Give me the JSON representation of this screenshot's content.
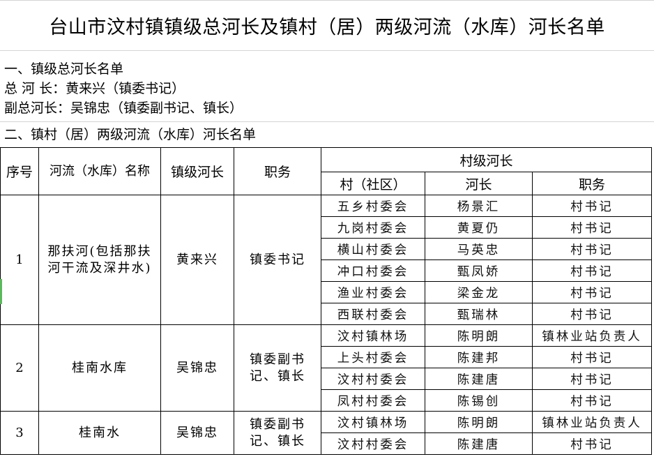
{
  "title": "台山市汶村镇镇级总河长及镇村（居）两级河流（水库）河长名单",
  "section1": {
    "heading": "一、镇级总河长名单",
    "chief": "总 河 长：黄来兴（镇委书记）",
    "deputy": "副总河长：吴锦忠（镇委副书记、镇长）"
  },
  "section2": {
    "heading": "二、镇村（居）两级河流（水库）河长名单"
  },
  "table": {
    "headers": {
      "seq": "序号",
      "river": "河流（水库）名称",
      "town_chief": "镇级河长",
      "position": "职务",
      "village_group": "村级河长",
      "village": "村（社区）",
      "village_chief": "河长",
      "village_position": "职务"
    },
    "groups": [
      {
        "seq": "1",
        "river": "那扶河(包括那扶河干流及深井水)",
        "town_chief": "黄来兴",
        "position": "镇委书记",
        "rows": [
          {
            "village": "五乡村委会",
            "chief": "杨景汇",
            "position": "村书记"
          },
          {
            "village": "九岗村委会",
            "chief": "黄夏仍",
            "position": "村书记"
          },
          {
            "village": "横山村委会",
            "chief": "马英忠",
            "position": "村书记"
          },
          {
            "village": "冲口村委会",
            "chief": "甄凤娇",
            "position": "村书记"
          },
          {
            "village": "渔业村委会",
            "chief": "梁金龙",
            "position": "村书记"
          },
          {
            "village": "西联村委会",
            "chief": "甄瑞林",
            "position": "村书记"
          }
        ]
      },
      {
        "seq": "2",
        "river": "桂南水库",
        "town_chief": "吴锦忠",
        "position": "镇委副书记、镇长",
        "rows": [
          {
            "village": "汶村镇林场",
            "chief": "陈明朗",
            "position": "镇林业站负责人"
          },
          {
            "village": "上头村委会",
            "chief": "陈建邦",
            "position": "村书记"
          },
          {
            "village": "汶村村委会",
            "chief": "陈建唐",
            "position": "村书记"
          },
          {
            "village": "凤村村委会",
            "chief": "陈锡创",
            "position": "村书记"
          }
        ]
      },
      {
        "seq": "3",
        "river": "桂南水",
        "town_chief": "吴锦忠",
        "position": "镇委副书记、镇长",
        "rows": [
          {
            "village": "汶村镇林场",
            "chief": "陈明朗",
            "position": "镇林业站负责人"
          },
          {
            "village": "汶村村委会",
            "chief": "陈建唐",
            "position": "村书记"
          }
        ]
      }
    ]
  }
}
